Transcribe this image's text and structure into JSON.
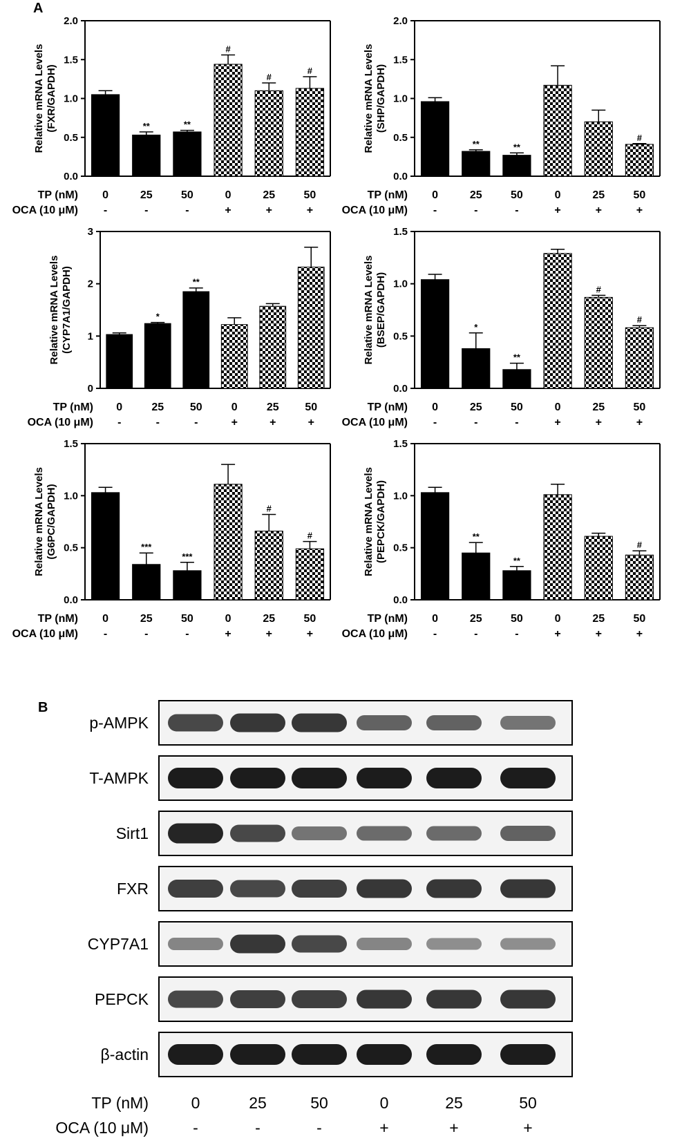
{
  "panel_labels": {
    "a": "A",
    "b": "B"
  },
  "conditions": {
    "tp_label": "TP (nM)",
    "oca_label": "OCA (10 μM)",
    "tp": [
      "0",
      "25",
      "50",
      "0",
      "25",
      "50"
    ],
    "oca": [
      "-",
      "-",
      "-",
      "+",
      "+",
      "+"
    ]
  },
  "colors": {
    "bar": "#000000",
    "pattern_dark": "#000000",
    "pattern_light": "#ffffff"
  },
  "chart_data": [
    {
      "type": "bar",
      "ylabel": [
        "Relative mRNA Levels",
        "(FXR/GAPDH)"
      ],
      "ylim": [
        0,
        2.0
      ],
      "yticks": [
        "0.0",
        "0.5",
        "1.0",
        "1.5",
        "2.0"
      ],
      "values": [
        1.05,
        0.53,
        0.57,
        1.44,
        1.1,
        1.13
      ],
      "errors": [
        0.05,
        0.04,
        0.02,
        0.12,
        0.1,
        0.15
      ],
      "annotations": [
        "",
        "**",
        "**",
        "#",
        "#",
        "#"
      ]
    },
    {
      "type": "bar",
      "ylabel": [
        "Relative mRNA Levels",
        "(SHP/GAPDH)"
      ],
      "ylim": [
        0,
        2.0
      ],
      "yticks": [
        "0.0",
        "0.5",
        "1.0",
        "1.5",
        "2.0"
      ],
      "values": [
        0.96,
        0.32,
        0.27,
        1.17,
        0.7,
        0.41
      ],
      "errors": [
        0.05,
        0.02,
        0.03,
        0.25,
        0.15,
        0.01
      ],
      "annotations": [
        "",
        "**",
        "**",
        "",
        "",
        "#"
      ]
    },
    {
      "type": "bar",
      "ylabel": [
        "Relative mRNA Levels",
        "(CYP7A1/GAPDH)"
      ],
      "ylim": [
        0,
        3
      ],
      "yticks": [
        "0",
        "1",
        "2",
        "3"
      ],
      "values": [
        1.03,
        1.24,
        1.85,
        1.22,
        1.57,
        2.32
      ],
      "errors": [
        0.03,
        0.02,
        0.07,
        0.13,
        0.05,
        0.38
      ],
      "annotations": [
        "",
        "*",
        "**",
        "",
        "",
        ""
      ]
    },
    {
      "type": "bar",
      "ylabel": [
        "Relative mRNA Levels",
        "(BSEP/GAPDH)"
      ],
      "ylim": [
        0,
        1.5
      ],
      "yticks": [
        "0.0",
        "0.5",
        "1.0",
        "1.5"
      ],
      "values": [
        1.04,
        0.38,
        0.18,
        1.29,
        0.87,
        0.58
      ],
      "errors": [
        0.05,
        0.15,
        0.06,
        0.04,
        0.02,
        0.02
      ],
      "annotations": [
        "",
        "*",
        "**",
        "",
        "#",
        "#"
      ]
    },
    {
      "type": "bar",
      "ylabel": [
        "Relative mRNA Levels",
        "(G6PC/GAPDH)"
      ],
      "ylim": [
        0,
        1.5
      ],
      "yticks": [
        "0.0",
        "0.5",
        "1.0",
        "1.5"
      ],
      "values": [
        1.03,
        0.34,
        0.28,
        1.11,
        0.66,
        0.49
      ],
      "errors": [
        0.05,
        0.11,
        0.08,
        0.19,
        0.16,
        0.07
      ],
      "annotations": [
        "",
        "***",
        "***",
        "",
        "#",
        "#"
      ]
    },
    {
      "type": "bar",
      "ylabel": [
        "Relative mRNA Levels",
        "(PEPCK/GAPDH)"
      ],
      "ylim": [
        0,
        1.5
      ],
      "yticks": [
        "0.0",
        "0.5",
        "1.0",
        "1.5"
      ],
      "values": [
        1.03,
        0.45,
        0.28,
        1.01,
        0.61,
        0.43
      ],
      "errors": [
        0.05,
        0.1,
        0.04,
        0.1,
        0.03,
        0.04
      ],
      "annotations": [
        "",
        "**",
        "**",
        "",
        "",
        "#"
      ]
    }
  ],
  "western_blot": {
    "rows": [
      {
        "label": "p-AMPK",
        "intensity": [
          0.75,
          0.85,
          0.85,
          0.6,
          0.6,
          0.5
        ]
      },
      {
        "label": "T-AMPK",
        "intensity": [
          1.0,
          1.0,
          1.0,
          1.0,
          1.0,
          1.0
        ]
      },
      {
        "label": "Sirt1",
        "intensity": [
          0.95,
          0.75,
          0.5,
          0.55,
          0.55,
          0.6
        ]
      },
      {
        "label": "FXR",
        "intensity": [
          0.8,
          0.75,
          0.8,
          0.85,
          0.85,
          0.85
        ]
      },
      {
        "label": "CYP7A1",
        "intensity": [
          0.4,
          0.85,
          0.75,
          0.4,
          0.35,
          0.35
        ]
      },
      {
        "label": "PEPCK",
        "intensity": [
          0.75,
          0.8,
          0.8,
          0.85,
          0.85,
          0.85
        ]
      },
      {
        "label": "β-actin",
        "intensity": [
          1.0,
          1.0,
          1.0,
          1.0,
          1.0,
          1.0
        ]
      }
    ]
  }
}
